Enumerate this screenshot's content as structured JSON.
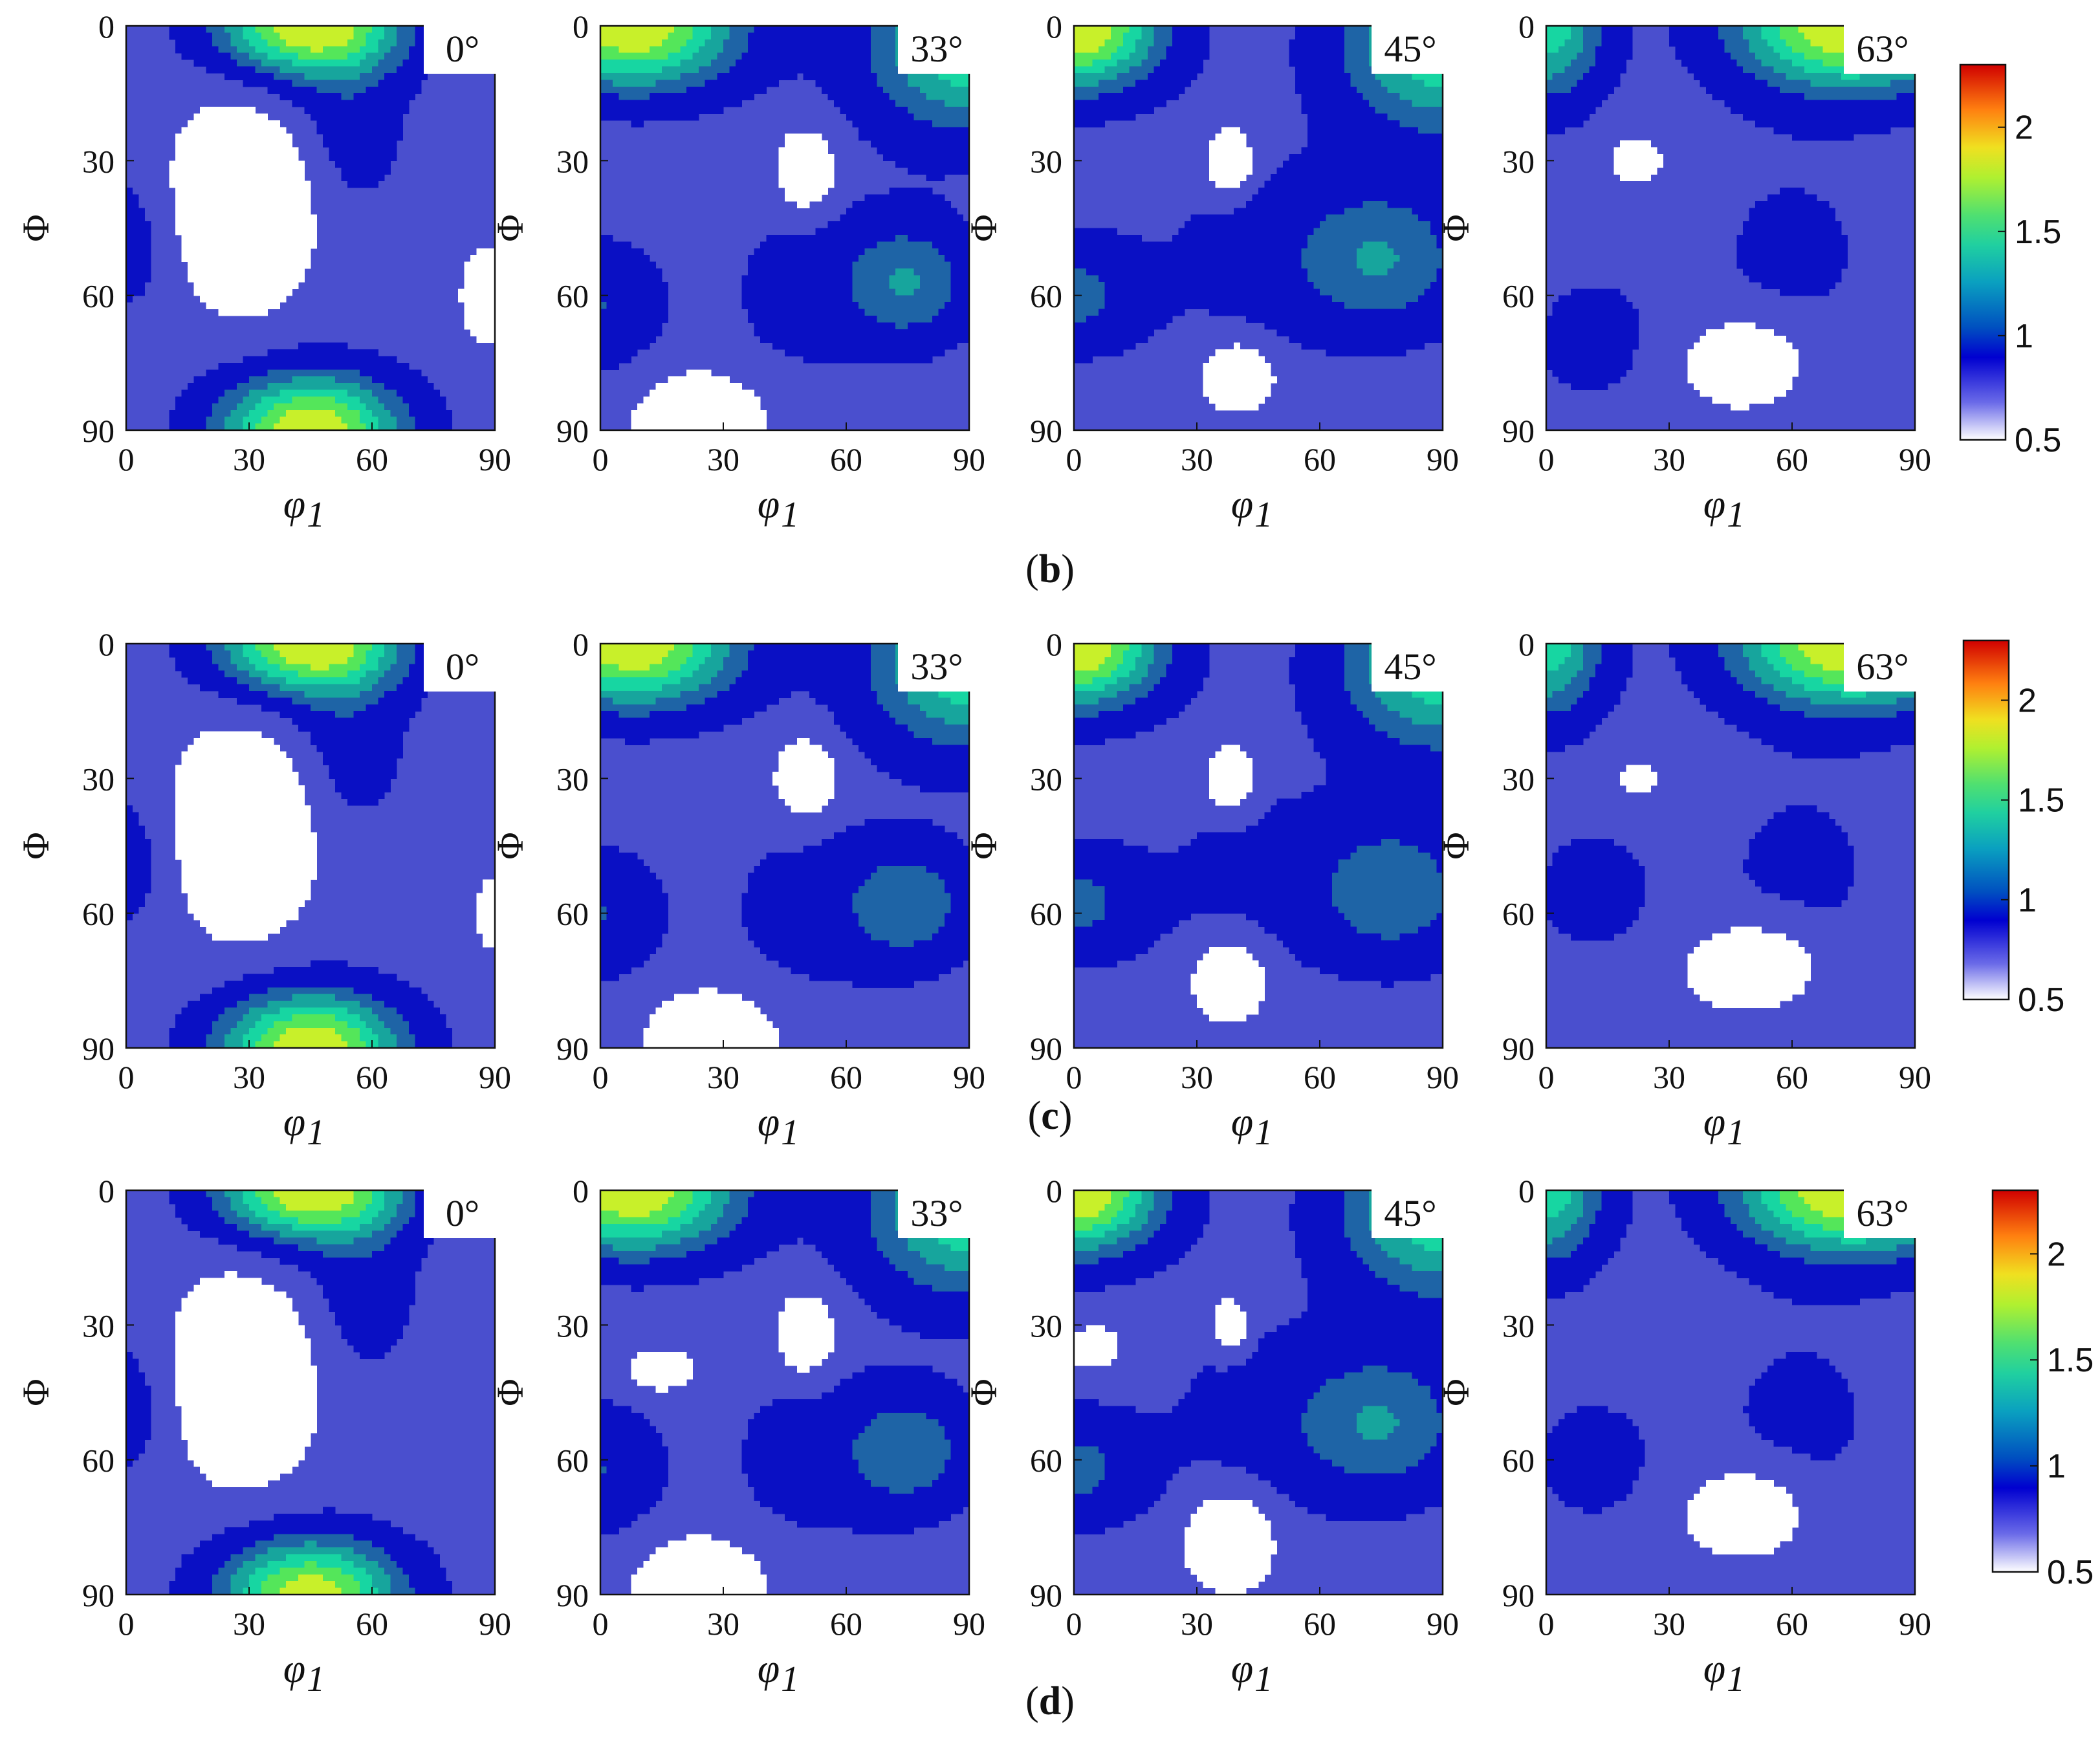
{
  "figure": {
    "panels": [
      {
        "label_prefix": "(",
        "label_letter": "b",
        "label_suffix": ")"
      },
      {
        "label_prefix": "(",
        "label_letter": "c",
        "label_suffix": ")"
      },
      {
        "label_prefix": "(",
        "label_letter": "d",
        "label_suffix": ")"
      }
    ],
    "section_angles": [
      "0°",
      "33°",
      "45°",
      "63°"
    ],
    "x_axis_label": "φ",
    "x_axis_label_subscript": "1",
    "y_axis_label": "Φ",
    "x_ticks": [
      "0",
      "30",
      "60",
      "90"
    ],
    "y_ticks": [
      "0",
      "30",
      "60",
      "90"
    ],
    "colorbar_ticks": [
      "2",
      "1.5",
      "1",
      "0.5"
    ]
  },
  "chart_data": {
    "type": "contour",
    "x_axis": {
      "label": "φ1",
      "range": [
        0,
        90
      ],
      "ticks": [
        0,
        30,
        60,
        90
      ]
    },
    "y_axis": {
      "label": "Φ",
      "range": [
        0,
        90
      ],
      "ticks": [
        0,
        30,
        60,
        90
      ],
      "inverted": true
    },
    "colorbar": {
      "range": [
        0.5,
        2.3
      ],
      "ticks": [
        0.5,
        1,
        1.5,
        2
      ],
      "colormap": "jet"
    },
    "contour_levels": [
      0.5,
      0.8,
      1.0,
      1.2,
      1.35,
      1.5,
      1.65,
      1.8,
      2.0,
      2.2
    ],
    "level_colors": [
      "#ffffff",
      "#4a4fce",
      "#0a10c4",
      "#1e64a6",
      "#17a59d",
      "#17d6a2",
      "#54e65a",
      "#c8f02a",
      "#f2d21a",
      "#ff6a12"
    ],
    "panels": [
      {
        "label": "b",
        "sections": [
          {
            "phi2": "0°",
            "blobs": [
              {
                "x": 45,
                "y": 0,
                "sx": 16,
                "sy": 8,
                "a": 1.05
              },
              {
                "x": 45,
                "y": 90,
                "sx": 16,
                "sy": 9,
                "a": 1.05
              },
              {
                "x": 28,
                "y": 40,
                "sx": 11,
                "sy": 14,
                "a": -0.55
              },
              {
                "x": 88,
                "y": 60,
                "sx": 4,
                "sy": 7,
                "a": -0.35
              },
              {
                "x": 0,
                "y": 48,
                "sx": 10,
                "sy": 12,
                "a": 0.2
              },
              {
                "x": 55,
                "y": 22,
                "sx": 10,
                "sy": 14,
                "a": 0.2
              }
            ]
          },
          {
            "phi2": "33°",
            "blobs": [
              {
                "x": 8,
                "y": 0,
                "sx": 18,
                "sy": 10,
                "a": 1.05
              },
              {
                "x": 90,
                "y": 4,
                "sx": 18,
                "sy": 14,
                "a": 0.75
              },
              {
                "x": 75,
                "y": 57,
                "sx": 12,
                "sy": 10,
                "a": 0.45
              },
              {
                "x": 0,
                "y": 62,
                "sx": 10,
                "sy": 10,
                "a": 0.3
              },
              {
                "x": 50,
                "y": 32,
                "sx": 5,
                "sy": 6,
                "a": -0.45
              },
              {
                "x": 25,
                "y": 88,
                "sx": 10,
                "sy": 7,
                "a": -0.5
              },
              {
                "x": 45,
                "y": 60,
                "sx": 16,
                "sy": 22,
                "a": 0.12
              }
            ]
          },
          {
            "phi2": "45°",
            "blobs": [
              {
                "x": 0,
                "y": 0,
                "sx": 15,
                "sy": 10,
                "a": 1.1
              },
              {
                "x": 90,
                "y": 4,
                "sx": 18,
                "sy": 14,
                "a": 0.75
              },
              {
                "x": 75,
                "y": 52,
                "sx": 16,
                "sy": 12,
                "a": 0.45
              },
              {
                "x": 0,
                "y": 60,
                "sx": 12,
                "sy": 9,
                "a": 0.35
              },
              {
                "x": 38,
                "y": 30,
                "sx": 4,
                "sy": 5,
                "a": -0.45
              },
              {
                "x": 40,
                "y": 78,
                "sx": 6,
                "sy": 5,
                "a": -0.45
              },
              {
                "x": 40,
                "y": 50,
                "sx": 18,
                "sy": 20,
                "a": 0.12
              }
            ]
          },
          {
            "phi2": "63°",
            "blobs": [
              {
                "x": 75,
                "y": 0,
                "sx": 20,
                "sy": 10,
                "a": 1.1
              },
              {
                "x": 0,
                "y": 0,
                "sx": 10,
                "sy": 12,
                "a": 0.7
              },
              {
                "x": 22,
                "y": 30,
                "sx": 4,
                "sy": 3,
                "a": -0.4
              },
              {
                "x": 48,
                "y": 75,
                "sx": 9,
                "sy": 6,
                "a": -0.5
              },
              {
                "x": 60,
                "y": 50,
                "sx": 22,
                "sy": 22,
                "a": 0.12
              },
              {
                "x": 10,
                "y": 70,
                "sx": 12,
                "sy": 12,
                "a": 0.15
              }
            ]
          }
        ]
      },
      {
        "label": "c",
        "sections": [
          {
            "phi2": "0°",
            "blobs": [
              {
                "x": 45,
                "y": 0,
                "sx": 16,
                "sy": 8,
                "a": 1.05
              },
              {
                "x": 45,
                "y": 90,
                "sx": 16,
                "sy": 9,
                "a": 1.05
              },
              {
                "x": 28,
                "y": 42,
                "sx": 11,
                "sy": 14,
                "a": -0.55
              },
              {
                "x": 90,
                "y": 60,
                "sx": 3,
                "sy": 5,
                "a": -0.35
              },
              {
                "x": 0,
                "y": 48,
                "sx": 10,
                "sy": 12,
                "a": 0.2
              },
              {
                "x": 55,
                "y": 22,
                "sx": 10,
                "sy": 14,
                "a": 0.2
              }
            ]
          },
          {
            "phi2": "33°",
            "blobs": [
              {
                "x": 8,
                "y": 0,
                "sx": 18,
                "sy": 10,
                "a": 1.05
              },
              {
                "x": 90,
                "y": 4,
                "sx": 18,
                "sy": 14,
                "a": 0.75
              },
              {
                "x": 75,
                "y": 58,
                "sx": 12,
                "sy": 10,
                "a": 0.42
              },
              {
                "x": 0,
                "y": 60,
                "sx": 10,
                "sy": 10,
                "a": 0.3
              },
              {
                "x": 50,
                "y": 30,
                "sx": 5,
                "sy": 6,
                "a": -0.45
              },
              {
                "x": 28,
                "y": 88,
                "sx": 10,
                "sy": 7,
                "a": -0.5
              },
              {
                "x": 45,
                "y": 60,
                "sx": 16,
                "sy": 22,
                "a": 0.12
              }
            ]
          },
          {
            "phi2": "45°",
            "blobs": [
              {
                "x": 0,
                "y": 0,
                "sx": 15,
                "sy": 10,
                "a": 1.1
              },
              {
                "x": 90,
                "y": 4,
                "sx": 18,
                "sy": 14,
                "a": 0.75
              },
              {
                "x": 78,
                "y": 55,
                "sx": 15,
                "sy": 12,
                "a": 0.42
              },
              {
                "x": 0,
                "y": 58,
                "sx": 12,
                "sy": 9,
                "a": 0.35
              },
              {
                "x": 38,
                "y": 30,
                "sx": 4,
                "sy": 5,
                "a": -0.45
              },
              {
                "x": 38,
                "y": 75,
                "sx": 6,
                "sy": 6,
                "a": -0.45
              },
              {
                "x": 40,
                "y": 50,
                "sx": 18,
                "sy": 20,
                "a": 0.12
              }
            ]
          },
          {
            "phi2": "63°",
            "blobs": [
              {
                "x": 75,
                "y": 0,
                "sx": 20,
                "sy": 10,
                "a": 1.1
              },
              {
                "x": 0,
                "y": 0,
                "sx": 10,
                "sy": 12,
                "a": 0.7
              },
              {
                "x": 22,
                "y": 30,
                "sx": 3,
                "sy": 2,
                "a": -0.4
              },
              {
                "x": 50,
                "y": 72,
                "sx": 10,
                "sy": 6,
                "a": -0.5
              },
              {
                "x": 62,
                "y": 50,
                "sx": 22,
                "sy": 22,
                "a": 0.12
              },
              {
                "x": 10,
                "y": 55,
                "sx": 12,
                "sy": 12,
                "a": 0.15
              }
            ]
          }
        ]
      },
      {
        "label": "d",
        "sections": [
          {
            "phi2": "0°",
            "blobs": [
              {
                "x": 45,
                "y": 0,
                "sx": 16,
                "sy": 8,
                "a": 1.05
              },
              {
                "x": 45,
                "y": 90,
                "sx": 16,
                "sy": 9,
                "a": 1.0
              },
              {
                "x": 28,
                "y": 42,
                "sx": 11,
                "sy": 14,
                "a": -0.55
              },
              {
                "x": 0,
                "y": 48,
                "sx": 10,
                "sy": 12,
                "a": 0.2
              },
              {
                "x": 58,
                "y": 22,
                "sx": 10,
                "sy": 14,
                "a": 0.2
              }
            ]
          },
          {
            "phi2": "33°",
            "blobs": [
              {
                "x": 8,
                "y": 0,
                "sx": 18,
                "sy": 10,
                "a": 1.05
              },
              {
                "x": 90,
                "y": 4,
                "sx": 18,
                "sy": 14,
                "a": 0.75
              },
              {
                "x": 75,
                "y": 58,
                "sx": 12,
                "sy": 10,
                "a": 0.42
              },
              {
                "x": 0,
                "y": 62,
                "sx": 10,
                "sy": 10,
                "a": 0.3
              },
              {
                "x": 50,
                "y": 32,
                "sx": 5,
                "sy": 6,
                "a": -0.45
              },
              {
                "x": 15,
                "y": 40,
                "sx": 5,
                "sy": 3,
                "a": -0.4
              },
              {
                "x": 25,
                "y": 88,
                "sx": 10,
                "sy": 7,
                "a": -0.5
              },
              {
                "x": 45,
                "y": 60,
                "sx": 16,
                "sy": 22,
                "a": 0.12
              }
            ]
          },
          {
            "phi2": "45°",
            "blobs": [
              {
                "x": 0,
                "y": 0,
                "sx": 15,
                "sy": 10,
                "a": 1.1
              },
              {
                "x": 90,
                "y": 4,
                "sx": 18,
                "sy": 14,
                "a": 0.75
              },
              {
                "x": 75,
                "y": 52,
                "sx": 16,
                "sy": 12,
                "a": 0.45
              },
              {
                "x": 0,
                "y": 62,
                "sx": 12,
                "sy": 9,
                "a": 0.35
              },
              {
                "x": 38,
                "y": 30,
                "sx": 3,
                "sy": 4,
                "a": -0.45
              },
              {
                "x": 5,
                "y": 35,
                "sx": 4,
                "sy": 3,
                "a": -0.4
              },
              {
                "x": 38,
                "y": 78,
                "sx": 7,
                "sy": 7,
                "a": -0.5
              },
              {
                "x": 40,
                "y": 50,
                "sx": 18,
                "sy": 20,
                "a": 0.12
              }
            ]
          },
          {
            "phi2": "63°",
            "blobs": [
              {
                "x": 75,
                "y": 0,
                "sx": 20,
                "sy": 10,
                "a": 1.1
              },
              {
                "x": 0,
                "y": 0,
                "sx": 10,
                "sy": 12,
                "a": 0.7
              },
              {
                "x": 48,
                "y": 72,
                "sx": 9,
                "sy": 6,
                "a": -0.5
              },
              {
                "x": 62,
                "y": 50,
                "sx": 22,
                "sy": 22,
                "a": 0.12
              },
              {
                "x": 10,
                "y": 60,
                "sx": 12,
                "sy": 12,
                "a": 0.15
              }
            ]
          }
        ]
      }
    ]
  }
}
